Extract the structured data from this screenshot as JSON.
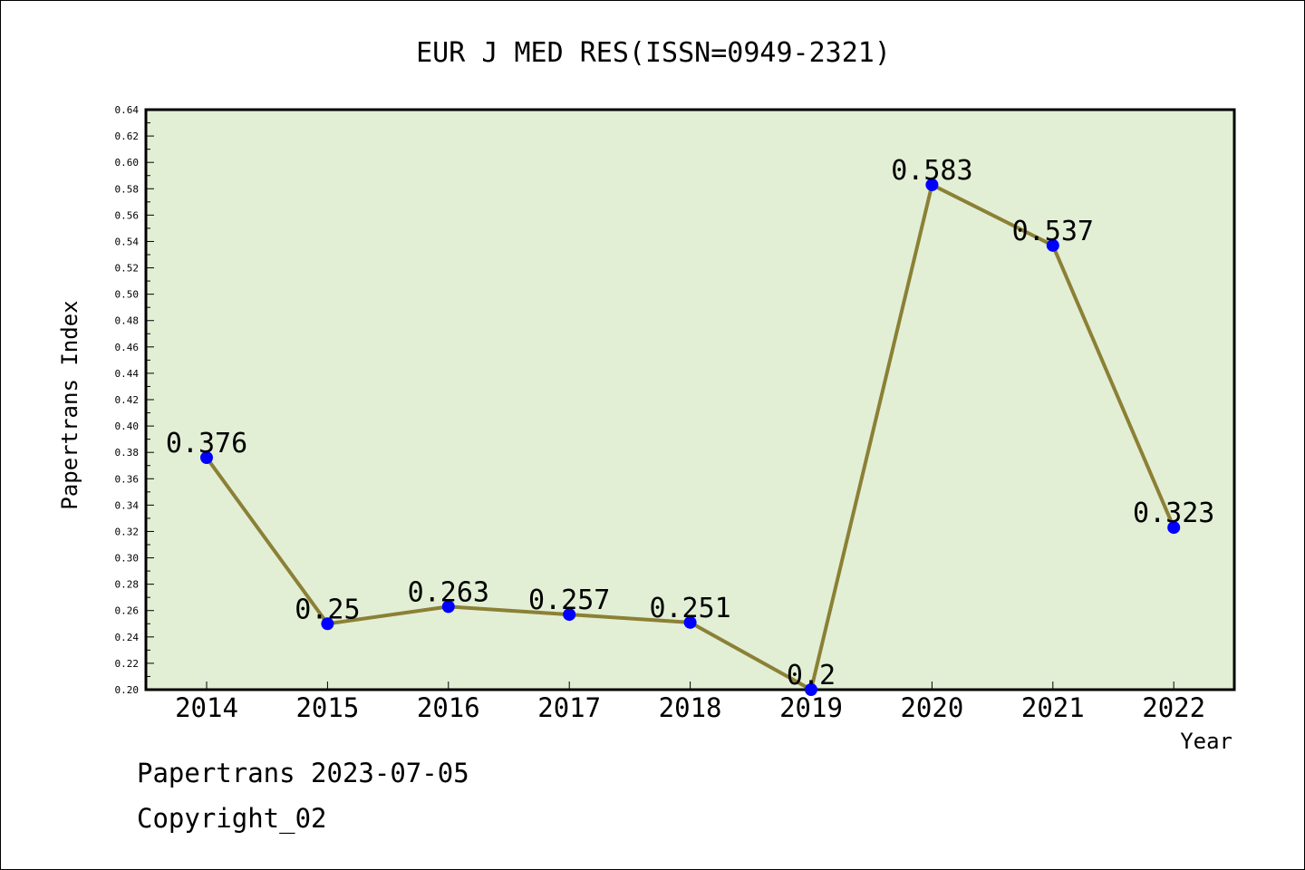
{
  "chart_data": {
    "type": "line",
    "title": "EUR J MED RES(ISSN=0949-2321)",
    "xlabel": "Year",
    "ylabel": "Papertrans Index",
    "categories": [
      "2014",
      "2015",
      "2016",
      "2017",
      "2018",
      "2019",
      "2020",
      "2021",
      "2022"
    ],
    "series": [
      {
        "values": [
          0.376,
          0.25,
          0.263,
          0.257,
          0.251,
          0.2,
          0.583,
          0.537,
          0.323
        ]
      }
    ],
    "data_labels": [
      "0.376",
      "0.25",
      "0.263",
      "0.257",
      "0.251",
      "0.2",
      "0.583",
      "0.537",
      "0.323"
    ],
    "ylim": [
      0.2,
      0.64
    ],
    "yticks": [
      "0.20",
      "0.22",
      "0.24",
      "0.26",
      "0.28",
      "0.30",
      "0.32",
      "0.34",
      "0.36",
      "0.38",
      "0.40",
      "0.42",
      "0.44",
      "0.46",
      "0.48",
      "0.50",
      "0.52",
      "0.54",
      "0.56",
      "0.58",
      "0.60",
      "0.62",
      "0.64"
    ],
    "grid": false,
    "legend": "none",
    "colors": {
      "plot_background": "#e2efd5",
      "line": "#8b8035",
      "marker": "#0000ff"
    }
  },
  "footer": {
    "line1": "Papertrans 2023-07-05",
    "line2": "Copyright_02"
  }
}
